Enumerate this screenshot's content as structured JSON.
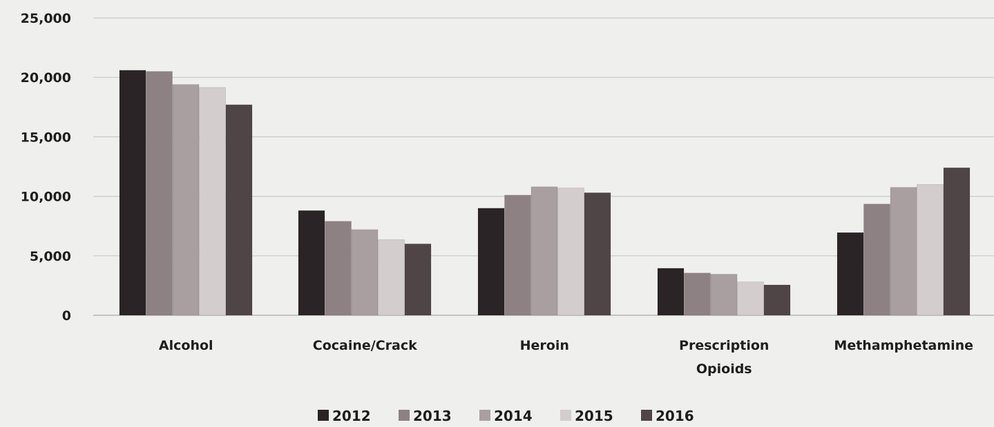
{
  "chart_data": {
    "type": "bar",
    "title": "",
    "xlabel": "",
    "ylabel": "",
    "ylim": [
      0,
      25000
    ],
    "yticks": [
      0,
      5000,
      10000,
      15000,
      20000,
      25000
    ],
    "ytick_labels": [
      "0",
      "5,000",
      "10,000",
      "15,000",
      "20,000",
      "25,000"
    ],
    "grid": true,
    "legend_position": "bottom",
    "categories": [
      [
        "Alcohol"
      ],
      [
        "Cocaine/Crack"
      ],
      [
        "Heroin"
      ],
      [
        "Prescription",
        "Opioids"
      ],
      [
        "Methamphetamine"
      ]
    ],
    "series": [
      {
        "name": "2012",
        "color": "#2a2426",
        "values": [
          20600,
          8800,
          9000,
          3950,
          6950
        ]
      },
      {
        "name": "2013",
        "color": "#8e8184",
        "values": [
          20500,
          7900,
          10100,
          3550,
          9350
        ]
      },
      {
        "name": "2014",
        "color": "#a99fa1",
        "values": [
          19400,
          7200,
          10800,
          3450,
          10750
        ]
      },
      {
        "name": "2015",
        "color": "#d3cdcd",
        "values": [
          19150,
          6350,
          10700,
          2800,
          11000
        ]
      },
      {
        "name": "2016",
        "color": "#4f4547",
        "values": [
          17700,
          6000,
          10300,
          2550,
          12400
        ]
      }
    ]
  }
}
